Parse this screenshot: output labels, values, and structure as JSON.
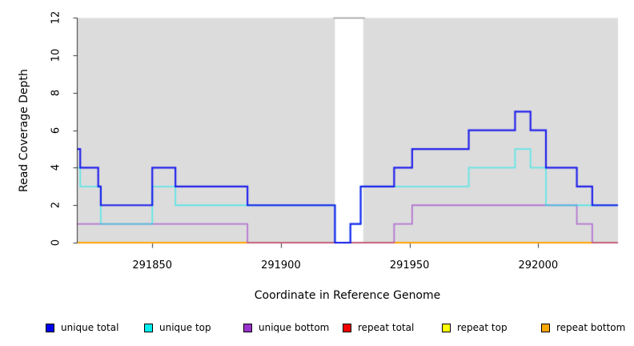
{
  "chart_data": {
    "type": "line",
    "subtype": "step-coverage",
    "title": "",
    "xlabel": "Coordinate in Reference Genome",
    "ylabel": "Read Coverage Depth",
    "xlim": [
      291821,
      292031
    ],
    "ylim": [
      0,
      12
    ],
    "x_ticks": [
      291850,
      291900,
      291950,
      292000
    ],
    "y_ticks": [
      0,
      2,
      4,
      6,
      8,
      10,
      12
    ],
    "grid": false,
    "plot_background_color": "#DCDCDC",
    "background_regions": [
      {
        "x0": 291821,
        "x1": 291921,
        "color": "#DCDCDC"
      },
      {
        "x0": 291932,
        "x1": 292031,
        "color": "#DCDCDC"
      }
    ],
    "coverage_gap": {
      "x0": 291921,
      "x1": 291932,
      "top_line_color": "#999999"
    },
    "series": [
      {
        "name": "unique total",
        "color": "#0000EE",
        "alpha": 0.85,
        "line_width": 2.2,
        "steps": [
          [
            291821,
            5
          ],
          [
            291822,
            4
          ],
          [
            291829,
            3
          ],
          [
            291830,
            2
          ],
          [
            291850,
            4
          ],
          [
            291859,
            3
          ],
          [
            291887,
            2
          ],
          [
            291921,
            0
          ],
          [
            291927,
            1
          ],
          [
            291931,
            3
          ],
          [
            291944,
            4
          ],
          [
            291951,
            5
          ],
          [
            291973,
            6
          ],
          [
            291991,
            7
          ],
          [
            291997,
            6
          ],
          [
            292003,
            4
          ],
          [
            292015,
            3
          ],
          [
            292021,
            2
          ]
        ],
        "x_end": 292031
      },
      {
        "name": "unique top",
        "color": "#00EEEE",
        "alpha": 0.55,
        "line_width": 1.8,
        "steps": [
          [
            291821,
            4
          ],
          [
            291822,
            3
          ],
          [
            291830,
            1
          ],
          [
            291850,
            3
          ],
          [
            291859,
            2
          ],
          [
            291921,
            0
          ],
          [
            291927,
            1
          ],
          [
            291931,
            3
          ],
          [
            291973,
            4
          ],
          [
            291991,
            5
          ],
          [
            291997,
            4
          ],
          [
            292003,
            2
          ]
        ],
        "x_end": 292031
      },
      {
        "name": "unique bottom",
        "color": "#9932CC",
        "alpha": 0.6,
        "line_width": 1.8,
        "steps": [
          [
            291821,
            1
          ],
          [
            291887,
            0
          ],
          [
            291944,
            1
          ],
          [
            291951,
            2
          ],
          [
            292015,
            1
          ],
          [
            292021,
            0
          ]
        ],
        "x_end": 292031
      },
      {
        "name": "repeat total",
        "color": "#EE0000",
        "alpha": 1,
        "line_width": 1.4,
        "steps": [
          [
            291821,
            0
          ]
        ],
        "x_end": 292031
      },
      {
        "name": "repeat top",
        "color": "#FFFF00",
        "alpha": 1,
        "line_width": 1.4,
        "steps": [
          [
            291821,
            0
          ]
        ],
        "x_end": 292031
      },
      {
        "name": "repeat bottom",
        "color": "#FFA500",
        "alpha": 1,
        "line_width": 2,
        "steps": [
          [
            291821,
            0
          ]
        ],
        "x_end": 292031
      }
    ],
    "draw_order": [
      "repeat total",
      "repeat top",
      "repeat bottom",
      "unique bottom",
      "unique top",
      "unique total"
    ],
    "legend": {
      "position": "bottom",
      "items": [
        {
          "label": "unique total",
          "color": "#0000EE"
        },
        {
          "label": "unique top",
          "color": "#00EEEE"
        },
        {
          "label": "unique bottom",
          "color": "#9932CC"
        },
        {
          "label": "repeat total",
          "color": "#EE0000"
        },
        {
          "label": "repeat top",
          "color": "#FFFF00"
        },
        {
          "label": "repeat bottom",
          "color": "#FFA500"
        }
      ]
    }
  },
  "layout_colors": {
    "axis_line": "#333333",
    "tick": "#404040",
    "text": "#000000"
  }
}
